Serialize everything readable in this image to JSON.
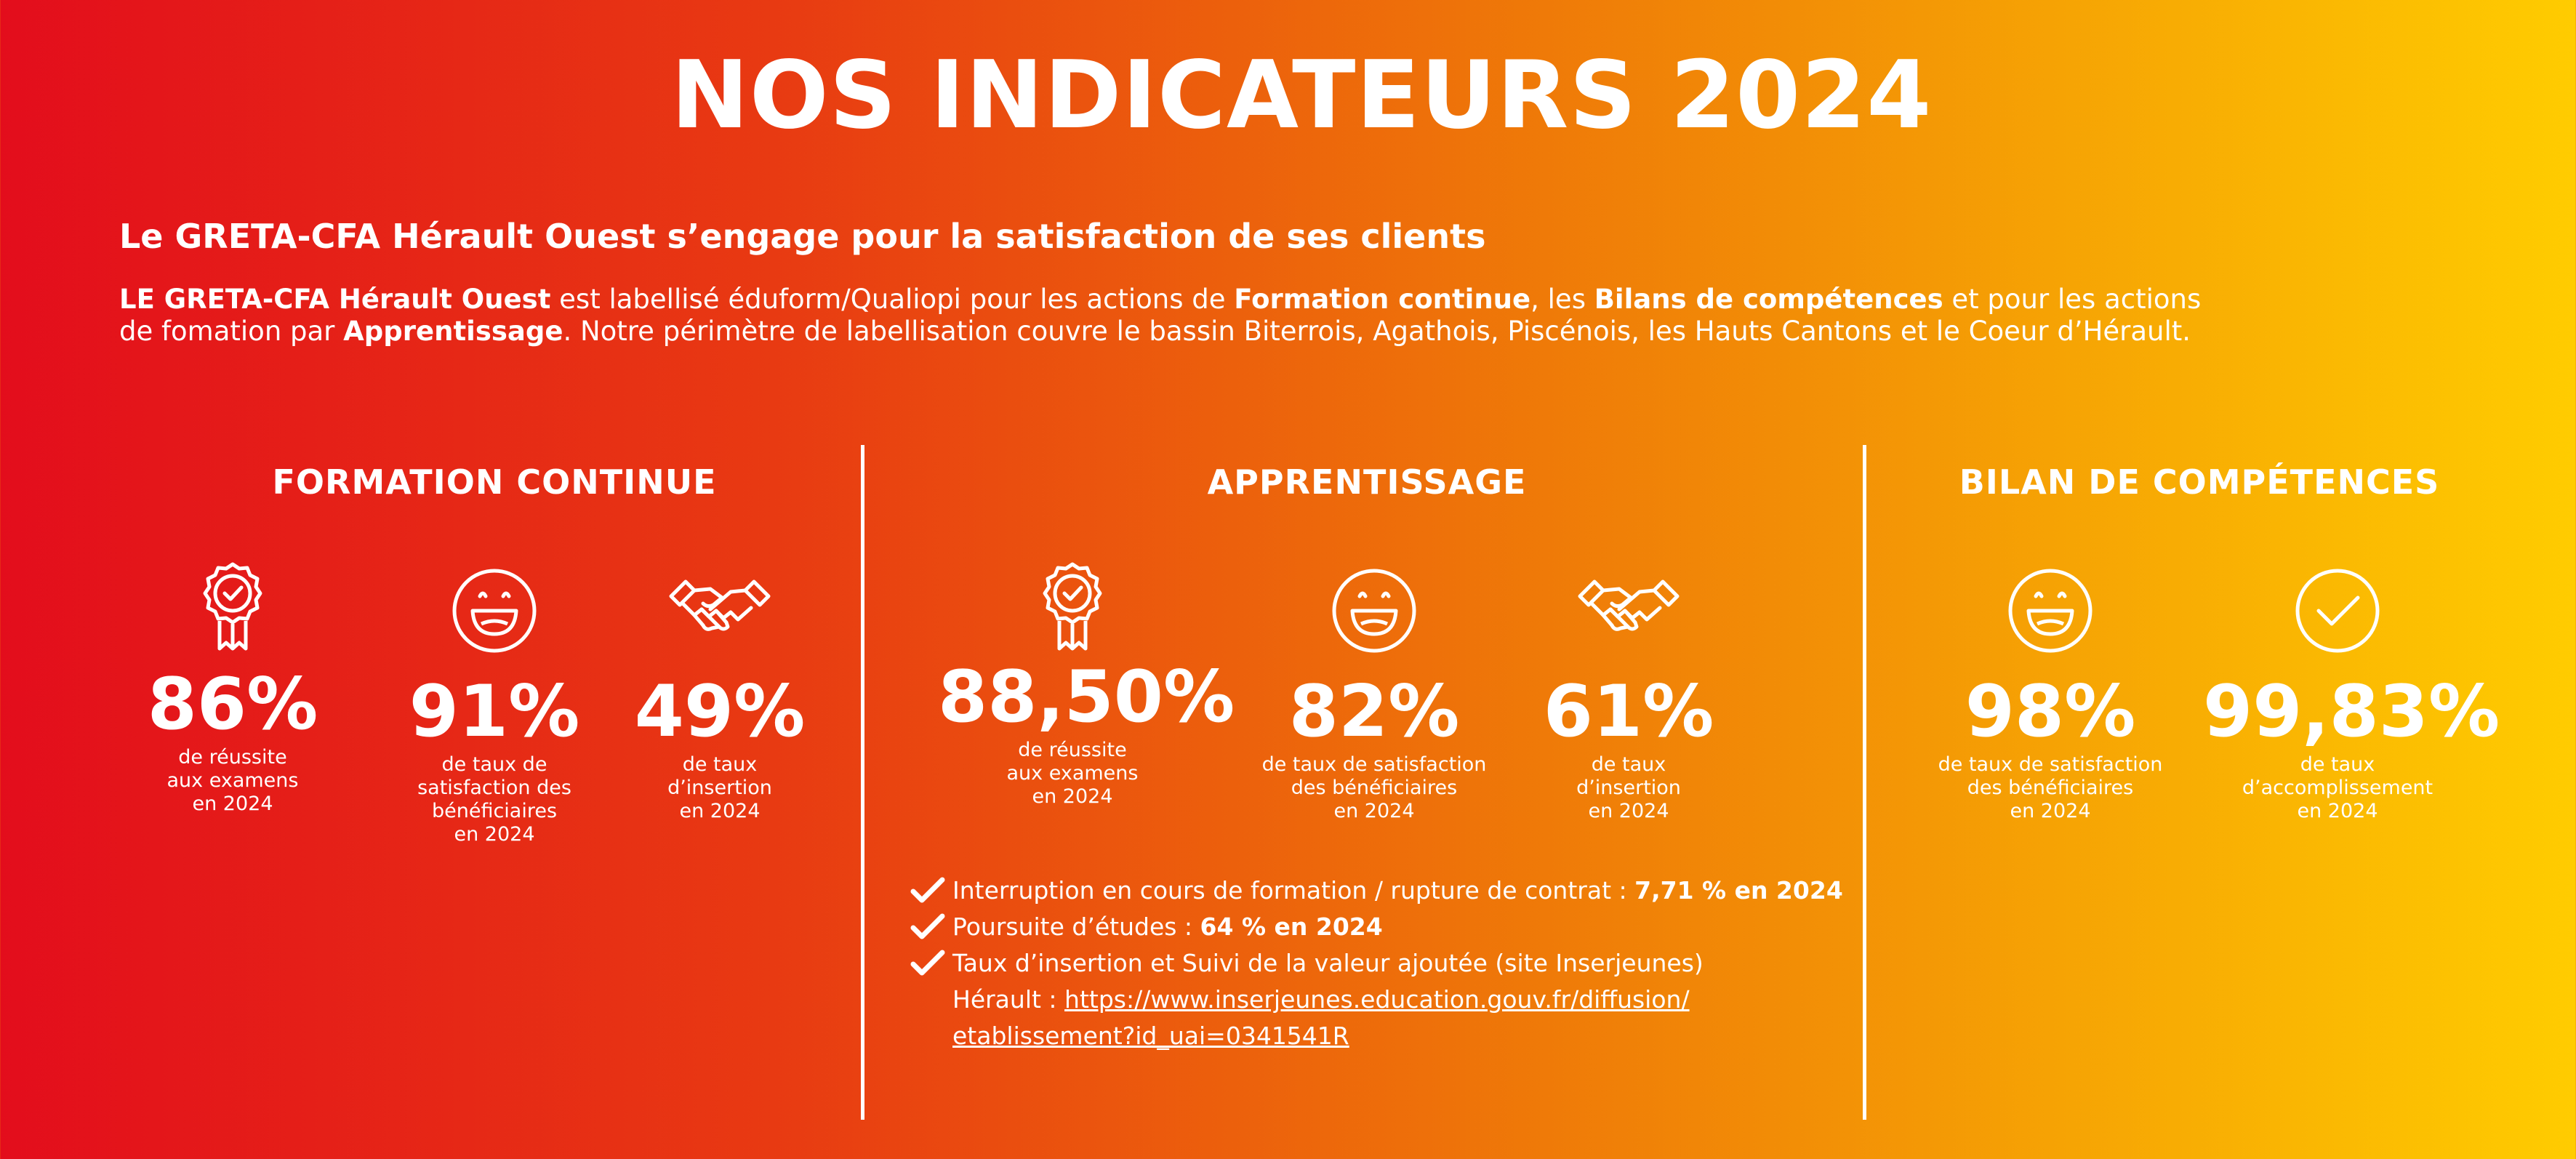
{
  "header": {
    "title": "NOS INDICATEURS 2024",
    "subtitle": "Le GRETA-CFA Hérault Ouest s’engage pour la satisfaction de ses clients"
  },
  "intro": {
    "p1_bold_org": "LE GRETA-CFA Hérault Ouest",
    "p1_text_a": " est labellisé éduform/Qualiopi pour les actions de ",
    "p1_bold_fc": "Formation continue",
    "p1_text_b": ", les ",
    "p1_bold_bc": "Bilans de compétences",
    "p1_text_c": " et pour les actions de fomation par ",
    "p1_bold_app": "Apprentissage",
    "p1_text_d": ". Notre périmètre de labellisation couvre le bassin Biterrois, Agathois, Piscénois, les Hauts Cantons et le Coeur d’Hérault."
  },
  "formation_continue": {
    "heading": "FORMATION CONTINUE",
    "stats": [
      {
        "icon": "award-ribbon-icon",
        "value": "86%",
        "desc": [
          "de réussite",
          "aux examens",
          "en 2024"
        ]
      },
      {
        "icon": "smiley-icon",
        "value": "91%",
        "desc": [
          "de taux de",
          "satisfaction des",
          "bénéficiaires",
          "en 2024"
        ]
      },
      {
        "icon": "handshake-icon",
        "value": "49%",
        "desc": [
          "de taux",
          "d’insertion",
          "en 2024"
        ]
      }
    ]
  },
  "apprentissage": {
    "heading": "APPRENTISSAGE",
    "stats": [
      {
        "icon": "award-ribbon-icon",
        "value": "88,50%",
        "desc": [
          "de réussite",
          "aux examens",
          "en 2024"
        ]
      },
      {
        "icon": "smiley-icon",
        "value": "82%",
        "desc": [
          "de taux de satisfaction",
          "des bénéficiaires",
          "en 2024"
        ]
      },
      {
        "icon": "handshake-icon",
        "value": "61%",
        "desc": [
          "de taux",
          "d’insertion",
          "en 2024"
        ]
      }
    ],
    "checks": [
      {
        "text": "Interruption en cours de formation / rupture de contrat : ",
        "bold": "7,71 %  en 2024"
      },
      {
        "text": "Poursuite d’études : ",
        "bold": "64 % en 2024"
      },
      {
        "text": "Taux d’insertion et Suivi de la valeur ajoutée (site Inserjeunes)",
        "bold": ""
      }
    ],
    "link_prefix": "Hérault : ",
    "link_line1": "https://www.inserjeunes.education.gouv.fr/diffusion/",
    "link_line2": "etablissement?id_uai=0341541R"
  },
  "bilan": {
    "heading": "BILAN DE COMPÉTENCES",
    "stats": [
      {
        "icon": "smiley-icon",
        "value": "98%",
        "desc": [
          "de taux de satisfaction",
          "des bénéficiaires",
          "en 2024"
        ]
      },
      {
        "icon": "check-circle-icon",
        "value": "99,83%",
        "desc": [
          "de taux",
          "d’accomplissement",
          "en 2024"
        ]
      }
    ]
  }
}
